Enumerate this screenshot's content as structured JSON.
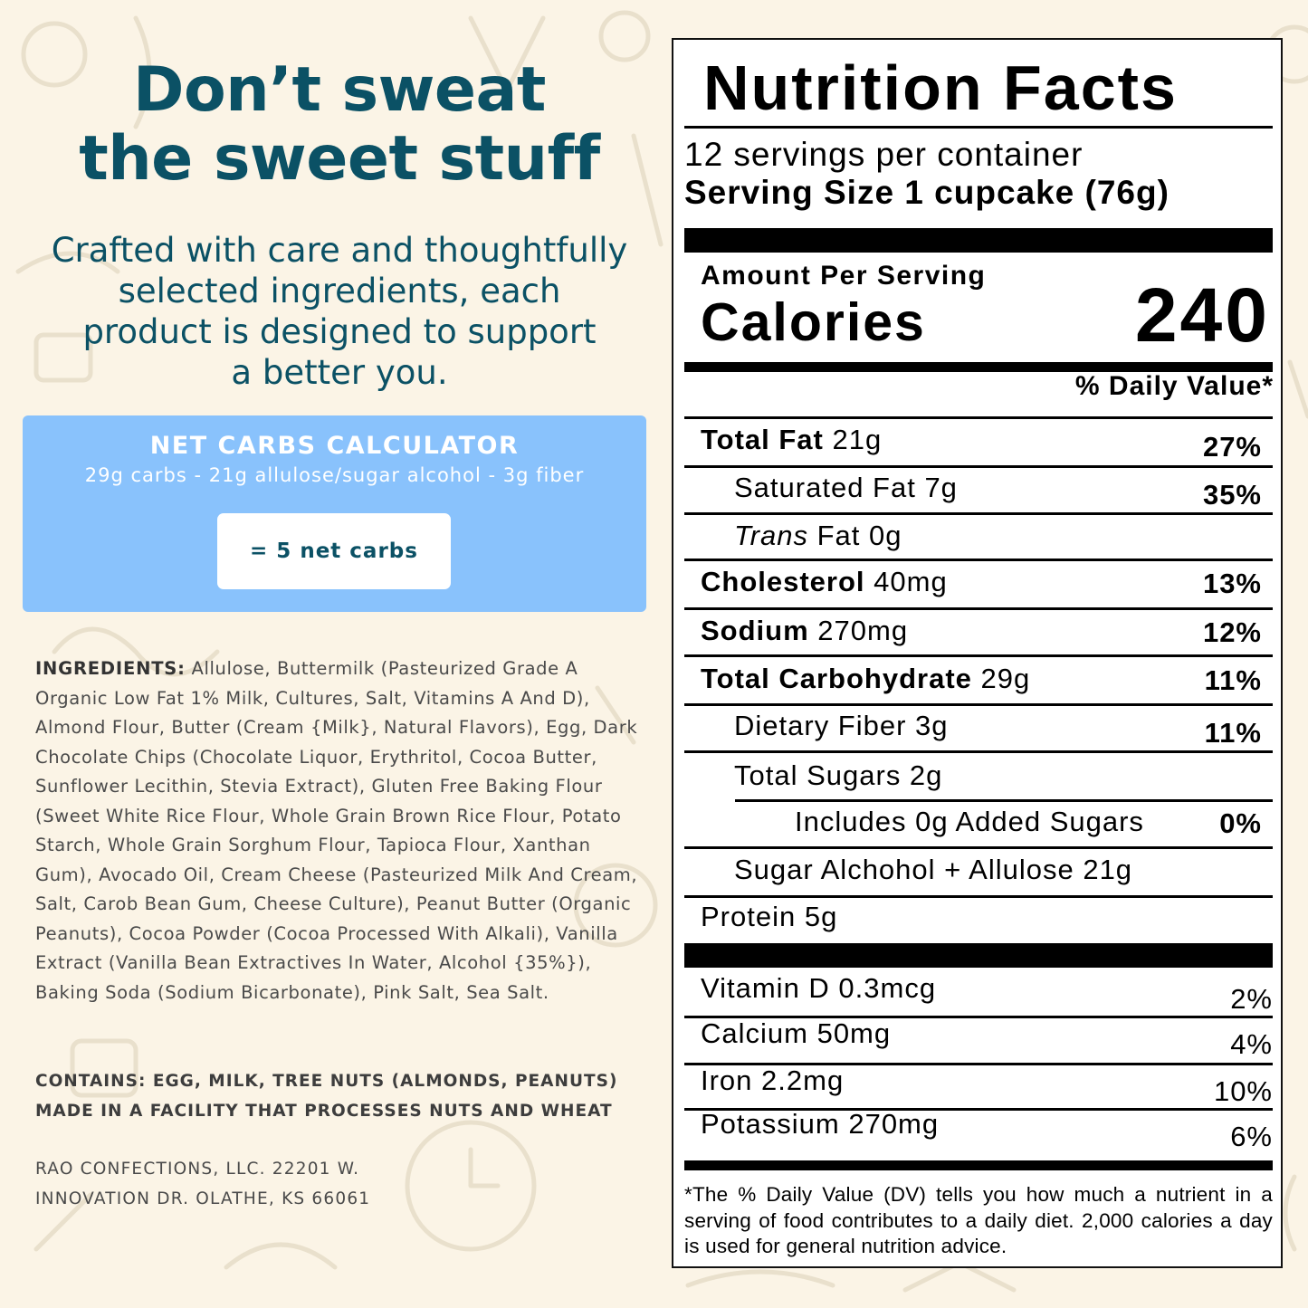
{
  "left": {
    "headline_line1": "Don’t sweat",
    "headline_line2": "the sweet stuff",
    "tagline_line1": "Crafted with care and thoughtfully",
    "tagline_line2": "selected ingredients, each",
    "tagline_line3": "product is designed to support",
    "tagline_line4": "a better you.",
    "calculator": {
      "title": "NET CARBS CALCULATOR",
      "formula": "29g carbs - 21g allulose/sugar alcohol - 3g fiber",
      "result": "= 5 net carbs"
    },
    "ingredients_label": "INGREDIENTS:",
    "ingredients_text": " Allulose, Buttermilk (Pasteurized Grade A Organic Low Fat 1% Milk, Cultures, Salt, Vitamins A And D), Almond Flour, Butter (Cream {Milk}, Natural Flavors), Egg, Dark Chocolate Chips (Chocolate Liquor, Erythritol, Cocoa Butter, Sunflower Lecithin, Stevia Extract), Gluten Free Baking Flour (Sweet White Rice Flour, Whole Grain Brown Rice Flour, Potato Starch, Whole Grain Sorghum Flour, Tapioca Flour, Xanthan Gum), Avocado Oil, Cream Cheese (Pasteurized Milk And Cream, Salt, Carob Bean Gum, Cheese Culture), Peanut Butter (Organic Peanuts), Cocoa Powder (Cocoa Processed With Alkali), Vanilla Extract (Vanilla Bean Extractives In Water, Alcohol {35%}), Baking Soda (Sodium Bicarbonate), Pink Salt, Sea Salt.",
    "contains_line1": "CONTAINS: EGG, MILK, TREE NUTS (ALMONDS, PEANUTS)",
    "contains_line2": "MADE IN A FACILITY THAT PROCESSES NUTS AND WHEAT",
    "address_line1": "RAO CONFECTIONS, LLC. 22201 W.",
    "address_line2": "INNOVATION DR. OLATHE, KS 66061"
  },
  "nutrition": {
    "title": "Nutrition Facts",
    "servings_per_container": "12 servings per container",
    "serving_size": "Serving Size 1 cupcake (76g)",
    "amount_per_serving": "Amount Per Serving",
    "calories_label": "Calories",
    "calories_value": "240",
    "daily_value_header": "% Daily Value*",
    "total_fat": {
      "label": "Total Fat",
      "amount": " 21g",
      "dv": "27%"
    },
    "saturated_fat": {
      "label": "Saturated Fat 7g",
      "dv": "35%"
    },
    "trans_fat": {
      "label_italic": "Trans",
      "label_rest": " Fat 0g"
    },
    "cholesterol": {
      "label": "Cholesterol",
      "amount": " 40mg",
      "dv": "13%"
    },
    "sodium": {
      "label": "Sodium",
      "amount": " 270mg",
      "dv": "12%"
    },
    "total_carbohydrate": {
      "label": "Total Carbohydrate",
      "amount": " 29g",
      "dv": "11%"
    },
    "dietary_fiber": {
      "label": "Dietary Fiber 3g",
      "dv": "11%"
    },
    "total_sugars": {
      "label": "Total Sugars 2g"
    },
    "added_sugars": {
      "label": "Includes 0g Added Sugars",
      "dv": "0%"
    },
    "sugar_alcohol": {
      "label": "Sugar Alchohol + Allulose 21g"
    },
    "protein": {
      "label": "Protein 5g"
    },
    "vitamin_d": {
      "label": "Vitamin D 0.3mcg",
      "dv": "2%"
    },
    "calcium": {
      "label": "Calcium 50mg",
      "dv": "4%"
    },
    "iron": {
      "label": "Iron 2.2mg",
      "dv": "10%"
    },
    "potassium": {
      "label": "Potassium 270mg",
      "dv": "6%"
    },
    "footnote": "*The % Daily Value (DV) tells you how much a nutrient in a serving of food contributes to a daily diet. 2,000 calories a day is used for general nutrition advice."
  },
  "colors": {
    "background": "#fbf4e6",
    "heading_teal": "#0b5165",
    "calculator_blue": "#89c2fc"
  }
}
